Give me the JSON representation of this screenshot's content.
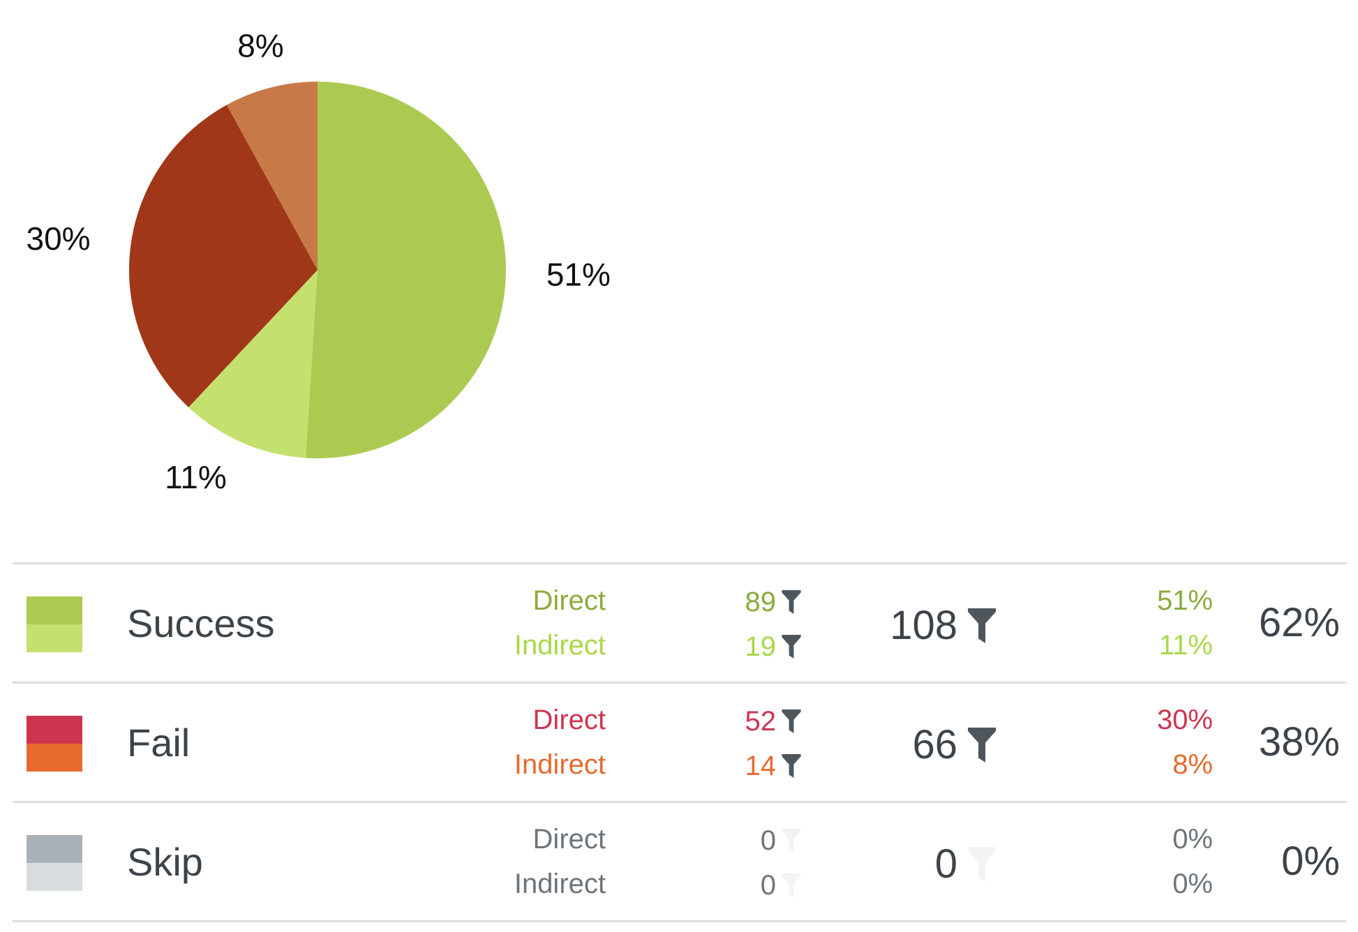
{
  "colors": {
    "success_direct": "#acca52",
    "success_indirect": "#c4e06e",
    "fail_pie_direct": "#a03719",
    "fail_pie_indirect": "#c77a47",
    "fail_direct": "#cc3550",
    "fail_indirect": "#e56b2f",
    "skip_direct": "#aab1b7",
    "skip_indirect": "#d7dddf",
    "success_direct_text": "#8bab3c",
    "success_indirect_text": "#a9d84a",
    "skip_text": "#6d747b",
    "filter_active": "#4e565d",
    "filter_inactive": "#f2f3f4"
  },
  "chart_data": {
    "type": "pie",
    "slices": [
      {
        "value": 51,
        "label": "51%",
        "color": "#acca52"
      },
      {
        "value": 11,
        "label": "11%",
        "color": "#c4e06e"
      },
      {
        "value": 30,
        "label": "30%",
        "color": "#a03719"
      },
      {
        "value": 8,
        "label": "8%",
        "color": "#c77a47"
      }
    ]
  },
  "rows": [
    {
      "label": "Success",
      "direct_label": "Direct",
      "indirect_label": "Indirect",
      "direct_count": "89",
      "indirect_count": "19",
      "total": "108",
      "direct_pct": "51%",
      "indirect_pct": "11%",
      "total_pct": "62%"
    },
    {
      "label": "Fail",
      "direct_label": "Direct",
      "indirect_label": "Indirect",
      "direct_count": "52",
      "indirect_count": "14",
      "total": "66",
      "direct_pct": "30%",
      "indirect_pct": "8%",
      "total_pct": "38%"
    },
    {
      "label": "Skip",
      "direct_label": "Direct",
      "indirect_label": "Indirect",
      "direct_count": "0",
      "indirect_count": "0",
      "total": "0",
      "direct_pct": "0%",
      "indirect_pct": "0%",
      "total_pct": "0%"
    }
  ]
}
